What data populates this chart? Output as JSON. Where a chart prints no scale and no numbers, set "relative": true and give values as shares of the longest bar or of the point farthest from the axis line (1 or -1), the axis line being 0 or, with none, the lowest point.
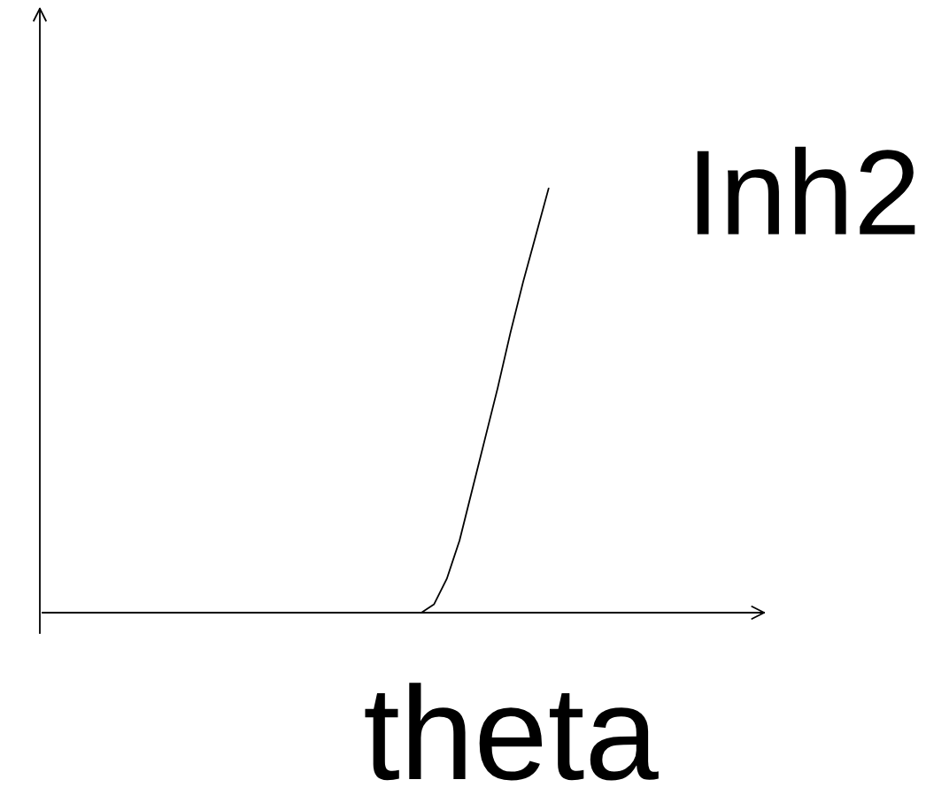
{
  "chart_data": {
    "type": "line",
    "relative": true,
    "xlabel": "theta",
    "tick_labels": false,
    "legend": false,
    "marker": "none",
    "line_style": "solid",
    "categories": [
      null,
      null,
      null,
      null,
      null,
      null,
      null,
      null,
      null,
      null,
      null,
      null,
      null,
      null,
      null,
      null,
      null,
      null,
      null,
      null,
      null,
      null,
      null,
      null,
      null,
      null,
      null,
      null,
      null,
      null,
      null,
      null,
      null,
      null,
      null,
      null,
      null,
      null,
      null,
      null,
      null,
      null,
      null,
      null,
      null,
      null,
      null,
      null,
      null,
      null,
      null,
      null,
      null,
      null,
      null,
      null,
      null,
      null
    ],
    "series": [
      {
        "name": "Inh2",
        "color": "#000000",
        "values": [
          null,
          null,
          null,
          null,
          null,
          null,
          null,
          null,
          null,
          null,
          null,
          null,
          null,
          null,
          null,
          null,
          null,
          null,
          null,
          null,
          null,
          null,
          null,
          null,
          null,
          null,
          null,
          null,
          null,
          null,
          0,
          0.02,
          0.08,
          0.17,
          0.29,
          0.41,
          0.53,
          0.66,
          0.78,
          0.89,
          1.0,
          null,
          null,
          null,
          null,
          null,
          null,
          null,
          null,
          null,
          null,
          null,
          null,
          null,
          null,
          null,
          null,
          null
        ]
      }
    ]
  }
}
